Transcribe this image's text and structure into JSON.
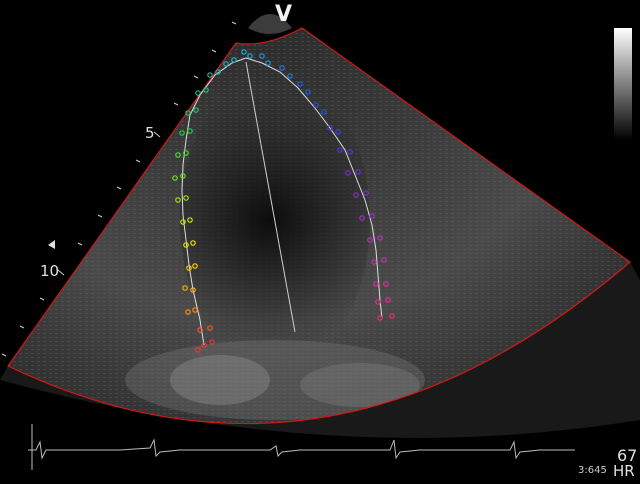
{
  "viewer": {
    "probe_marker": "V",
    "depth_labels": {
      "d5": "5",
      "d10": "10"
    },
    "heart_rate": {
      "value": "67",
      "label": "HR"
    },
    "timestamp": "3:645",
    "colors": {
      "sector_border": "#d01818",
      "trace_line": "#dddddd",
      "ecg_line": "#bbbbbb",
      "background": "#000000"
    },
    "icons": [
      "depth-marker-triangle-icon",
      "grayscale-bar"
    ]
  }
}
